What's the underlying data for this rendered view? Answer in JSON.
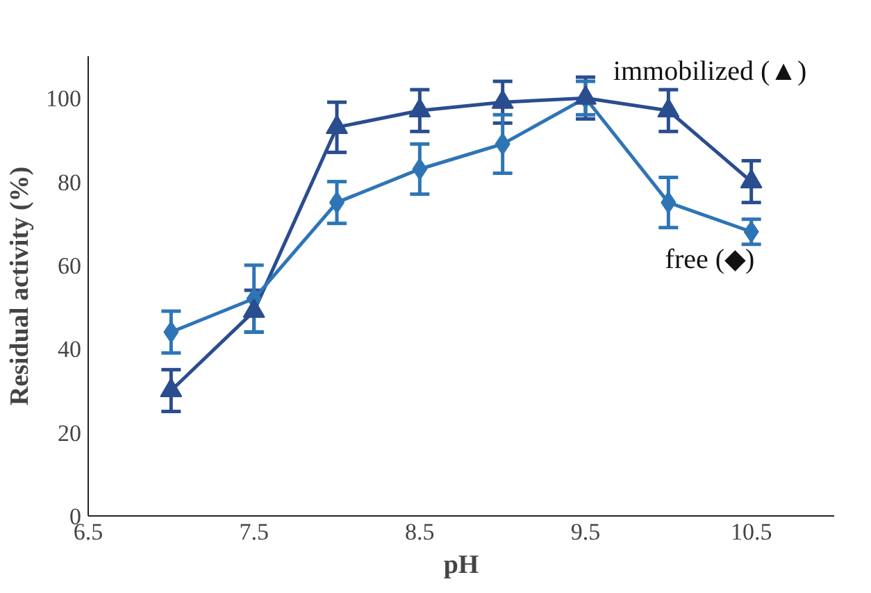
{
  "chart_data": {
    "type": "line",
    "xlabel": "pH",
    "ylabel": "Residual activity (%)",
    "x": [
      7,
      7.5,
      8,
      8.5,
      9,
      9.5,
      10,
      10.5
    ],
    "xlim": [
      6.5,
      11
    ],
    "xticks": [
      {
        "value": 6.5,
        "label": "6.5"
      },
      {
        "value": 7.5,
        "label": "7.5"
      },
      {
        "value": 8.5,
        "label": "8.5"
      },
      {
        "value": 9.5,
        "label": "9.5"
      },
      {
        "value": 10.5,
        "label": "10.5"
      }
    ],
    "ylim": [
      0,
      110
    ],
    "yticks": [
      0,
      20,
      40,
      60,
      80,
      100
    ],
    "grid": false,
    "line_style": "solid",
    "series": [
      {
        "name": "immobilized (▲)",
        "color": "#2a4d8f",
        "marker": "triangle",
        "values": [
          30,
          49,
          93,
          97,
          99,
          100,
          97,
          80
        ],
        "errors": [
          5,
          5,
          6,
          5,
          5,
          5,
          5,
          5
        ]
      },
      {
        "name": "free (◆)",
        "color": "#2e75b6",
        "marker": "diamond",
        "values": [
          44,
          52,
          75,
          83,
          89,
          100,
          75,
          68
        ],
        "errors": [
          5,
          8,
          5,
          6,
          7,
          4,
          6,
          3
        ]
      }
    ]
  }
}
